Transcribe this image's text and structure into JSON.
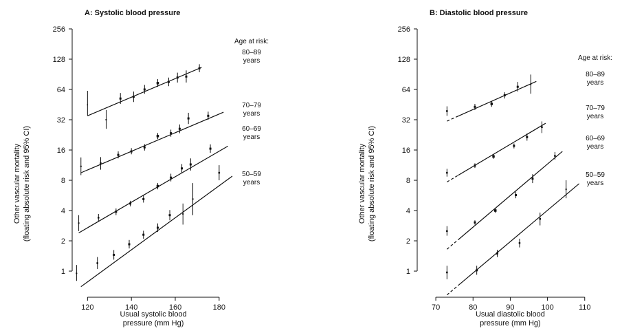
{
  "chart_data": [
    {
      "type": "scatter",
      "title": "A: Systolic blood pressure",
      "xlabel": [
        "Usual systolic blood",
        "pressure (mm Hg)"
      ],
      "ylabel": [
        "Other vascular mortality",
        "(floating absolute risk and 95% CI)"
      ],
      "y_scale": "log2",
      "xlim": [
        113,
        186
      ],
      "ylim": [
        0.55,
        256
      ],
      "x_ticks": [
        120,
        140,
        160,
        180
      ],
      "y_ticks": [
        1,
        2,
        4,
        8,
        16,
        32,
        64,
        128,
        256
      ],
      "legend_title": "Age at risk:",
      "series": [
        {
          "name": "80–89 years",
          "label_lines": [
            "80–89",
            "years"
          ],
          "fit": {
            "x": [
              120,
              172
            ],
            "y": [
              35,
              106
            ],
            "dashed_until": null
          },
          "points": [
            {
              "x": 120,
              "y": 45,
              "lo": 35,
              "hi": 62,
              "size": 1.5
            },
            {
              "x": 128.5,
              "y": 32,
              "lo": 26,
              "hi": 40,
              "size": 2
            },
            {
              "x": 135,
              "y": 52,
              "lo": 46,
              "hi": 59,
              "size": 3
            },
            {
              "x": 141,
              "y": 54,
              "lo": 48,
              "hi": 61,
              "size": 3
            },
            {
              "x": 146,
              "y": 64,
              "lo": 58,
              "hi": 71,
              "size": 3
            },
            {
              "x": 152,
              "y": 74,
              "lo": 68,
              "hi": 81,
              "size": 3.5
            },
            {
              "x": 157,
              "y": 76,
              "lo": 69,
              "hi": 84,
              "size": 3
            },
            {
              "x": 161,
              "y": 84,
              "lo": 75,
              "hi": 94,
              "size": 3
            },
            {
              "x": 165,
              "y": 86,
              "lo": 75,
              "hi": 99,
              "size": 3
            },
            {
              "x": 171,
              "y": 104,
              "lo": 95,
              "hi": 114,
              "size": 3
            }
          ]
        },
        {
          "name": "70–79 years",
          "label_lines": [
            "70–79",
            "years"
          ],
          "fit": {
            "x": [
              117,
              182
            ],
            "y": [
              9.5,
              38
            ],
            "dashed_until": null
          },
          "points": [
            {
              "x": 117,
              "y": 11,
              "lo": 9,
              "hi": 13.5,
              "size": 2
            },
            {
              "x": 126,
              "y": 11.8,
              "lo": 10.2,
              "hi": 13.6,
              "size": 2.5
            },
            {
              "x": 134,
              "y": 14.3,
              "lo": 13.2,
              "hi": 15.5,
              "size": 3
            },
            {
              "x": 140,
              "y": 15.5,
              "lo": 14.5,
              "hi": 16.7,
              "size": 3
            },
            {
              "x": 146,
              "y": 17,
              "lo": 15.8,
              "hi": 18.3,
              "size": 3
            },
            {
              "x": 152,
              "y": 22,
              "lo": 20.5,
              "hi": 23.6,
              "size": 3.5
            },
            {
              "x": 158,
              "y": 23.5,
              "lo": 21.7,
              "hi": 25.5,
              "size": 3
            },
            {
              "x": 162,
              "y": 26,
              "lo": 23.5,
              "hi": 28.7,
              "size": 3
            },
            {
              "x": 166,
              "y": 33,
              "lo": 29,
              "hi": 37.5,
              "size": 3
            },
            {
              "x": 175,
              "y": 35,
              "lo": 32,
              "hi": 38.5,
              "size": 3
            }
          ]
        },
        {
          "name": "60–69 years",
          "label_lines": [
            "60–69",
            "years"
          ],
          "fit": {
            "x": [
              116,
              184
            ],
            "y": [
              2.4,
              17.5
            ],
            "dashed_until": null
          },
          "points": [
            {
              "x": 116,
              "y": 3,
              "lo": 2.5,
              "hi": 3.6,
              "size": 2
            },
            {
              "x": 125,
              "y": 3.4,
              "lo": 3.1,
              "hi": 3.7,
              "size": 2.5
            },
            {
              "x": 133,
              "y": 3.9,
              "lo": 3.6,
              "hi": 4.2,
              "size": 3
            },
            {
              "x": 139.5,
              "y": 4.7,
              "lo": 4.4,
              "hi": 5,
              "size": 3
            },
            {
              "x": 145.5,
              "y": 5.2,
              "lo": 4.8,
              "hi": 5.7,
              "size": 3
            },
            {
              "x": 152,
              "y": 7,
              "lo": 6.5,
              "hi": 7.5,
              "size": 3.5
            },
            {
              "x": 158,
              "y": 8.5,
              "lo": 7.8,
              "hi": 9.3,
              "size": 3
            },
            {
              "x": 163,
              "y": 10.5,
              "lo": 9.5,
              "hi": 11.6,
              "size": 3
            },
            {
              "x": 167,
              "y": 11.5,
              "lo": 10,
              "hi": 13.2,
              "size": 3
            },
            {
              "x": 176,
              "y": 16.5,
              "lo": 15,
              "hi": 18.2,
              "size": 3
            }
          ]
        },
        {
          "name": "50–59 years",
          "label_lines": [
            "50–59",
            "years"
          ],
          "fit": {
            "x": [
              117,
              186
            ],
            "y": [
              0.7,
              8.8
            ],
            "dashed_until": null
          },
          "points": [
            {
              "x": 115,
              "y": 0.95,
              "lo": 0.8,
              "hi": 1.15,
              "size": 2
            },
            {
              "x": 124.5,
              "y": 1.2,
              "lo": 1.05,
              "hi": 1.38,
              "size": 2.5
            },
            {
              "x": 132,
              "y": 1.45,
              "lo": 1.3,
              "hi": 1.62,
              "size": 3
            },
            {
              "x": 139,
              "y": 1.85,
              "lo": 1.68,
              "hi": 2.04,
              "size": 3
            },
            {
              "x": 145.5,
              "y": 2.3,
              "lo": 2.1,
              "hi": 2.52,
              "size": 3
            },
            {
              "x": 152,
              "y": 2.7,
              "lo": 2.45,
              "hi": 2.98,
              "size": 3
            },
            {
              "x": 157.5,
              "y": 3.6,
              "lo": 3.2,
              "hi": 4.05,
              "size": 3
            },
            {
              "x": 163.5,
              "y": 3.7,
              "lo": 2.9,
              "hi": 4.7,
              "size": 2
            },
            {
              "x": 168,
              "y": 5.2,
              "lo": 3.6,
              "hi": 7.5,
              "size": 2
            },
            {
              "x": 180,
              "y": 9.5,
              "lo": 8,
              "hi": 11.3,
              "size": 2.5
            }
          ]
        }
      ]
    },
    {
      "type": "scatter",
      "title": "B: Diastolic blood pressure",
      "xlabel": [
        "Usual diastolic blood",
        "pressure (mm Hg)"
      ],
      "ylabel": [
        "Other vascular mortality",
        "(floating absolute risk and 95% CI)"
      ],
      "y_scale": "log2",
      "xlim": [
        65,
        113
      ],
      "ylim": [
        0.55,
        256
      ],
      "x_ticks": [
        70,
        80,
        90,
        100,
        110
      ],
      "y_ticks": [
        1,
        2,
        4,
        8,
        16,
        32,
        64,
        128,
        256
      ],
      "legend_title": "Age at risk:",
      "series": [
        {
          "name": "80–89 years",
          "label_lines": [
            "80–89",
            "years"
          ],
          "fit": {
            "x": [
              73,
              97
            ],
            "y": [
              31,
              77
            ],
            "dashed_until": 76
          },
          "points": [
            {
              "x": 73,
              "y": 39,
              "lo": 35,
              "hi": 43.5,
              "size": 2.5
            },
            {
              "x": 80.5,
              "y": 43,
              "lo": 40,
              "hi": 46,
              "size": 3
            },
            {
              "x": 85,
              "y": 46,
              "lo": 43,
              "hi": 49,
              "size": 3.5
            },
            {
              "x": 88.5,
              "y": 56,
              "lo": 52,
              "hi": 60,
              "size": 3
            },
            {
              "x": 92,
              "y": 68,
              "lo": 61,
              "hi": 76,
              "size": 3
            },
            {
              "x": 95.5,
              "y": 72,
              "lo": 58,
              "hi": 90,
              "size": 2
            }
          ]
        },
        {
          "name": "70–79 years",
          "label_lines": [
            "70–79",
            "years"
          ],
          "fit": {
            "x": [
              73,
              99.5
            ],
            "y": [
              7.7,
              29.5
            ],
            "dashed_until": 76
          },
          "points": [
            {
              "x": 73,
              "y": 9.5,
              "lo": 8.7,
              "hi": 10.4,
              "size": 2.5
            },
            {
              "x": 80.5,
              "y": 11.2,
              "lo": 10.6,
              "hi": 11.8,
              "size": 3
            },
            {
              "x": 85.5,
              "y": 13.8,
              "lo": 13.1,
              "hi": 14.5,
              "size": 3.5
            },
            {
              "x": 91,
              "y": 17.6,
              "lo": 16.6,
              "hi": 18.6,
              "size": 3
            },
            {
              "x": 94.5,
              "y": 21.5,
              "lo": 19.8,
              "hi": 23.3,
              "size": 3
            },
            {
              "x": 98.5,
              "y": 27,
              "lo": 23.6,
              "hi": 30.8,
              "size": 2.5
            }
          ]
        },
        {
          "name": "60–69 years",
          "label_lines": [
            "60–69",
            "years"
          ],
          "fit": {
            "x": [
              73,
              104
            ],
            "y": [
              1.65,
              15.5
            ],
            "dashed_until": 76
          },
          "points": [
            {
              "x": 73,
              "y": 2.5,
              "lo": 2.25,
              "hi": 2.8,
              "size": 2.5
            },
            {
              "x": 80.5,
              "y": 3.05,
              "lo": 2.9,
              "hi": 3.2,
              "size": 3
            },
            {
              "x": 86,
              "y": 4,
              "lo": 3.8,
              "hi": 4.22,
              "size": 3.5
            },
            {
              "x": 91.5,
              "y": 5.7,
              "lo": 5.3,
              "hi": 6.15,
              "size": 3
            },
            {
              "x": 96,
              "y": 8.3,
              "lo": 7.5,
              "hi": 9.2,
              "size": 3
            },
            {
              "x": 102,
              "y": 14,
              "lo": 12.8,
              "hi": 15.3,
              "size": 2.5
            }
          ]
        },
        {
          "name": "50–59 years",
          "label_lines": [
            "50–59",
            "years"
          ],
          "fit": {
            "x": [
              73,
              108.5
            ],
            "y": [
              0.58,
              7.4
            ],
            "dashed_until": 76
          },
          "points": [
            {
              "x": 73,
              "y": 0.97,
              "lo": 0.83,
              "hi": 1.13,
              "size": 2.5
            },
            {
              "x": 81,
              "y": 1.02,
              "lo": 0.92,
              "hi": 1.13,
              "size": 3
            },
            {
              "x": 86.5,
              "y": 1.5,
              "lo": 1.38,
              "hi": 1.63,
              "size": 3
            },
            {
              "x": 92.5,
              "y": 1.9,
              "lo": 1.72,
              "hi": 2.1,
              "size": 2.5
            },
            {
              "x": 98,
              "y": 3.3,
              "lo": 2.85,
              "hi": 3.82,
              "size": 2.5
            },
            {
              "x": 105,
              "y": 6.5,
              "lo": 5.3,
              "hi": 8,
              "size": 2
            }
          ]
        }
      ]
    }
  ]
}
